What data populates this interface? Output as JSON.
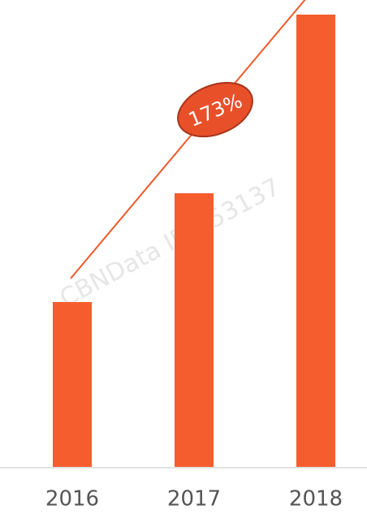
{
  "chart_data": {
    "type": "bar",
    "categories": [
      "2016",
      "2017",
      "2018"
    ],
    "values": [
      203,
      337,
      557
    ],
    "color": "#f65d2e",
    "ylim": [
      0,
      575
    ],
    "annotation": "173%",
    "watermark": "CBNData ID:353137"
  }
}
